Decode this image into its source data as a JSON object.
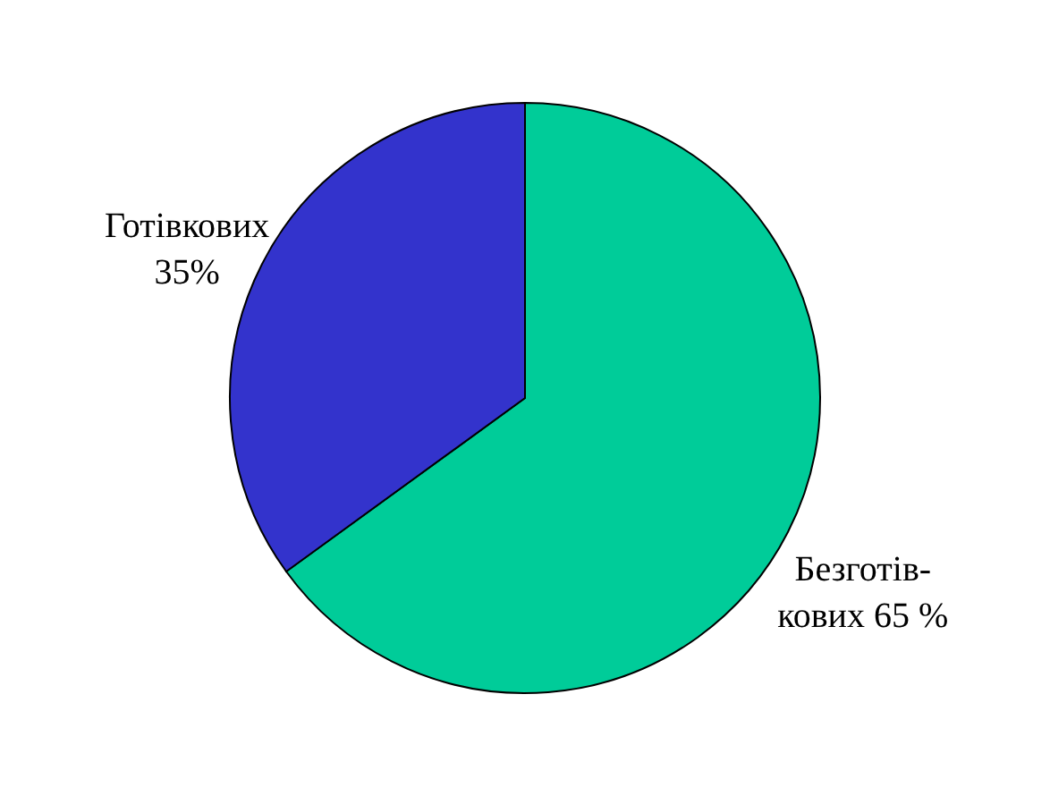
{
  "chart_data": {
    "type": "pie",
    "categories": [
      "Безготів-\nкових",
      "Готівкових"
    ],
    "values": [
      65,
      35
    ],
    "value_labels": [
      "65 %",
      "35%"
    ],
    "colors": [
      "#00cc99",
      "#3333cc"
    ]
  }
}
